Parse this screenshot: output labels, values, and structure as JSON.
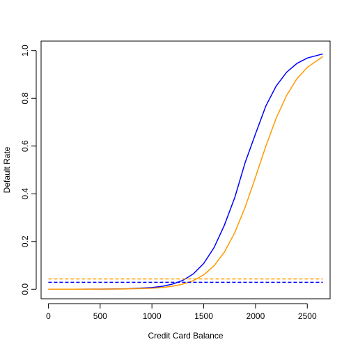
{
  "chart_data": {
    "type": "line",
    "title": "",
    "xlabel": "Credit Card Balance",
    "ylabel": "Default Rate",
    "xlim": [
      -70,
      2720
    ],
    "ylim": [
      -0.04,
      1.04
    ],
    "xticks": [
      0,
      500,
      1000,
      1500,
      2000,
      2500
    ],
    "xtick_labels": [
      "0",
      "500",
      "1000",
      "1500",
      "2000",
      "2500"
    ],
    "yticks": [
      0.0,
      0.2,
      0.4,
      0.6,
      0.8,
      1.0
    ],
    "ytick_labels": [
      "0.0",
      "0.2",
      "0.4",
      "0.6",
      "0.8",
      "1.0"
    ],
    "grid": false,
    "series": [
      {
        "color": "#0000ff",
        "style": "solid",
        "x": [
          0,
          250,
          500,
          750,
          1000,
          1100,
          1200,
          1300,
          1400,
          1500,
          1600,
          1700,
          1800,
          1900,
          2000,
          2100,
          2200,
          2300,
          2400,
          2500,
          2650
        ],
        "y": [
          0.0001,
          0.0002,
          0.0006,
          0.0017,
          0.0069,
          0.0122,
          0.0216,
          0.0375,
          0.0645,
          0.1081,
          0.1749,
          0.2689,
          0.3846,
          0.5312,
          0.6514,
          0.7685,
          0.852,
          0.9095,
          0.9465,
          0.969,
          0.9862
        ]
      },
      {
        "color": "#ff9900",
        "style": "solid",
        "x": [
          0,
          250,
          500,
          750,
          1000,
          1100,
          1200,
          1300,
          1400,
          1500,
          1600,
          1700,
          1800,
          1900,
          2000,
          2100,
          2200,
          2300,
          2400,
          2500,
          2650
        ],
        "y": [
          5e-05,
          0.0001,
          0.0004,
          0.0012,
          0.0042,
          0.0072,
          0.0125,
          0.0214,
          0.0362,
          0.0604,
          0.0985,
          0.156,
          0.2378,
          0.344,
          0.47,
          0.6,
          0.7175,
          0.812,
          0.8825,
          0.93,
          0.975
        ]
      },
      {
        "color": "#0000ff",
        "style": "dashed",
        "x": [
          0,
          2650
        ],
        "y": [
          0.029,
          0.029
        ]
      },
      {
        "color": "#ff9900",
        "style": "dashed",
        "x": [
          0,
          2650
        ],
        "y": [
          0.043,
          0.043
        ]
      }
    ]
  }
}
